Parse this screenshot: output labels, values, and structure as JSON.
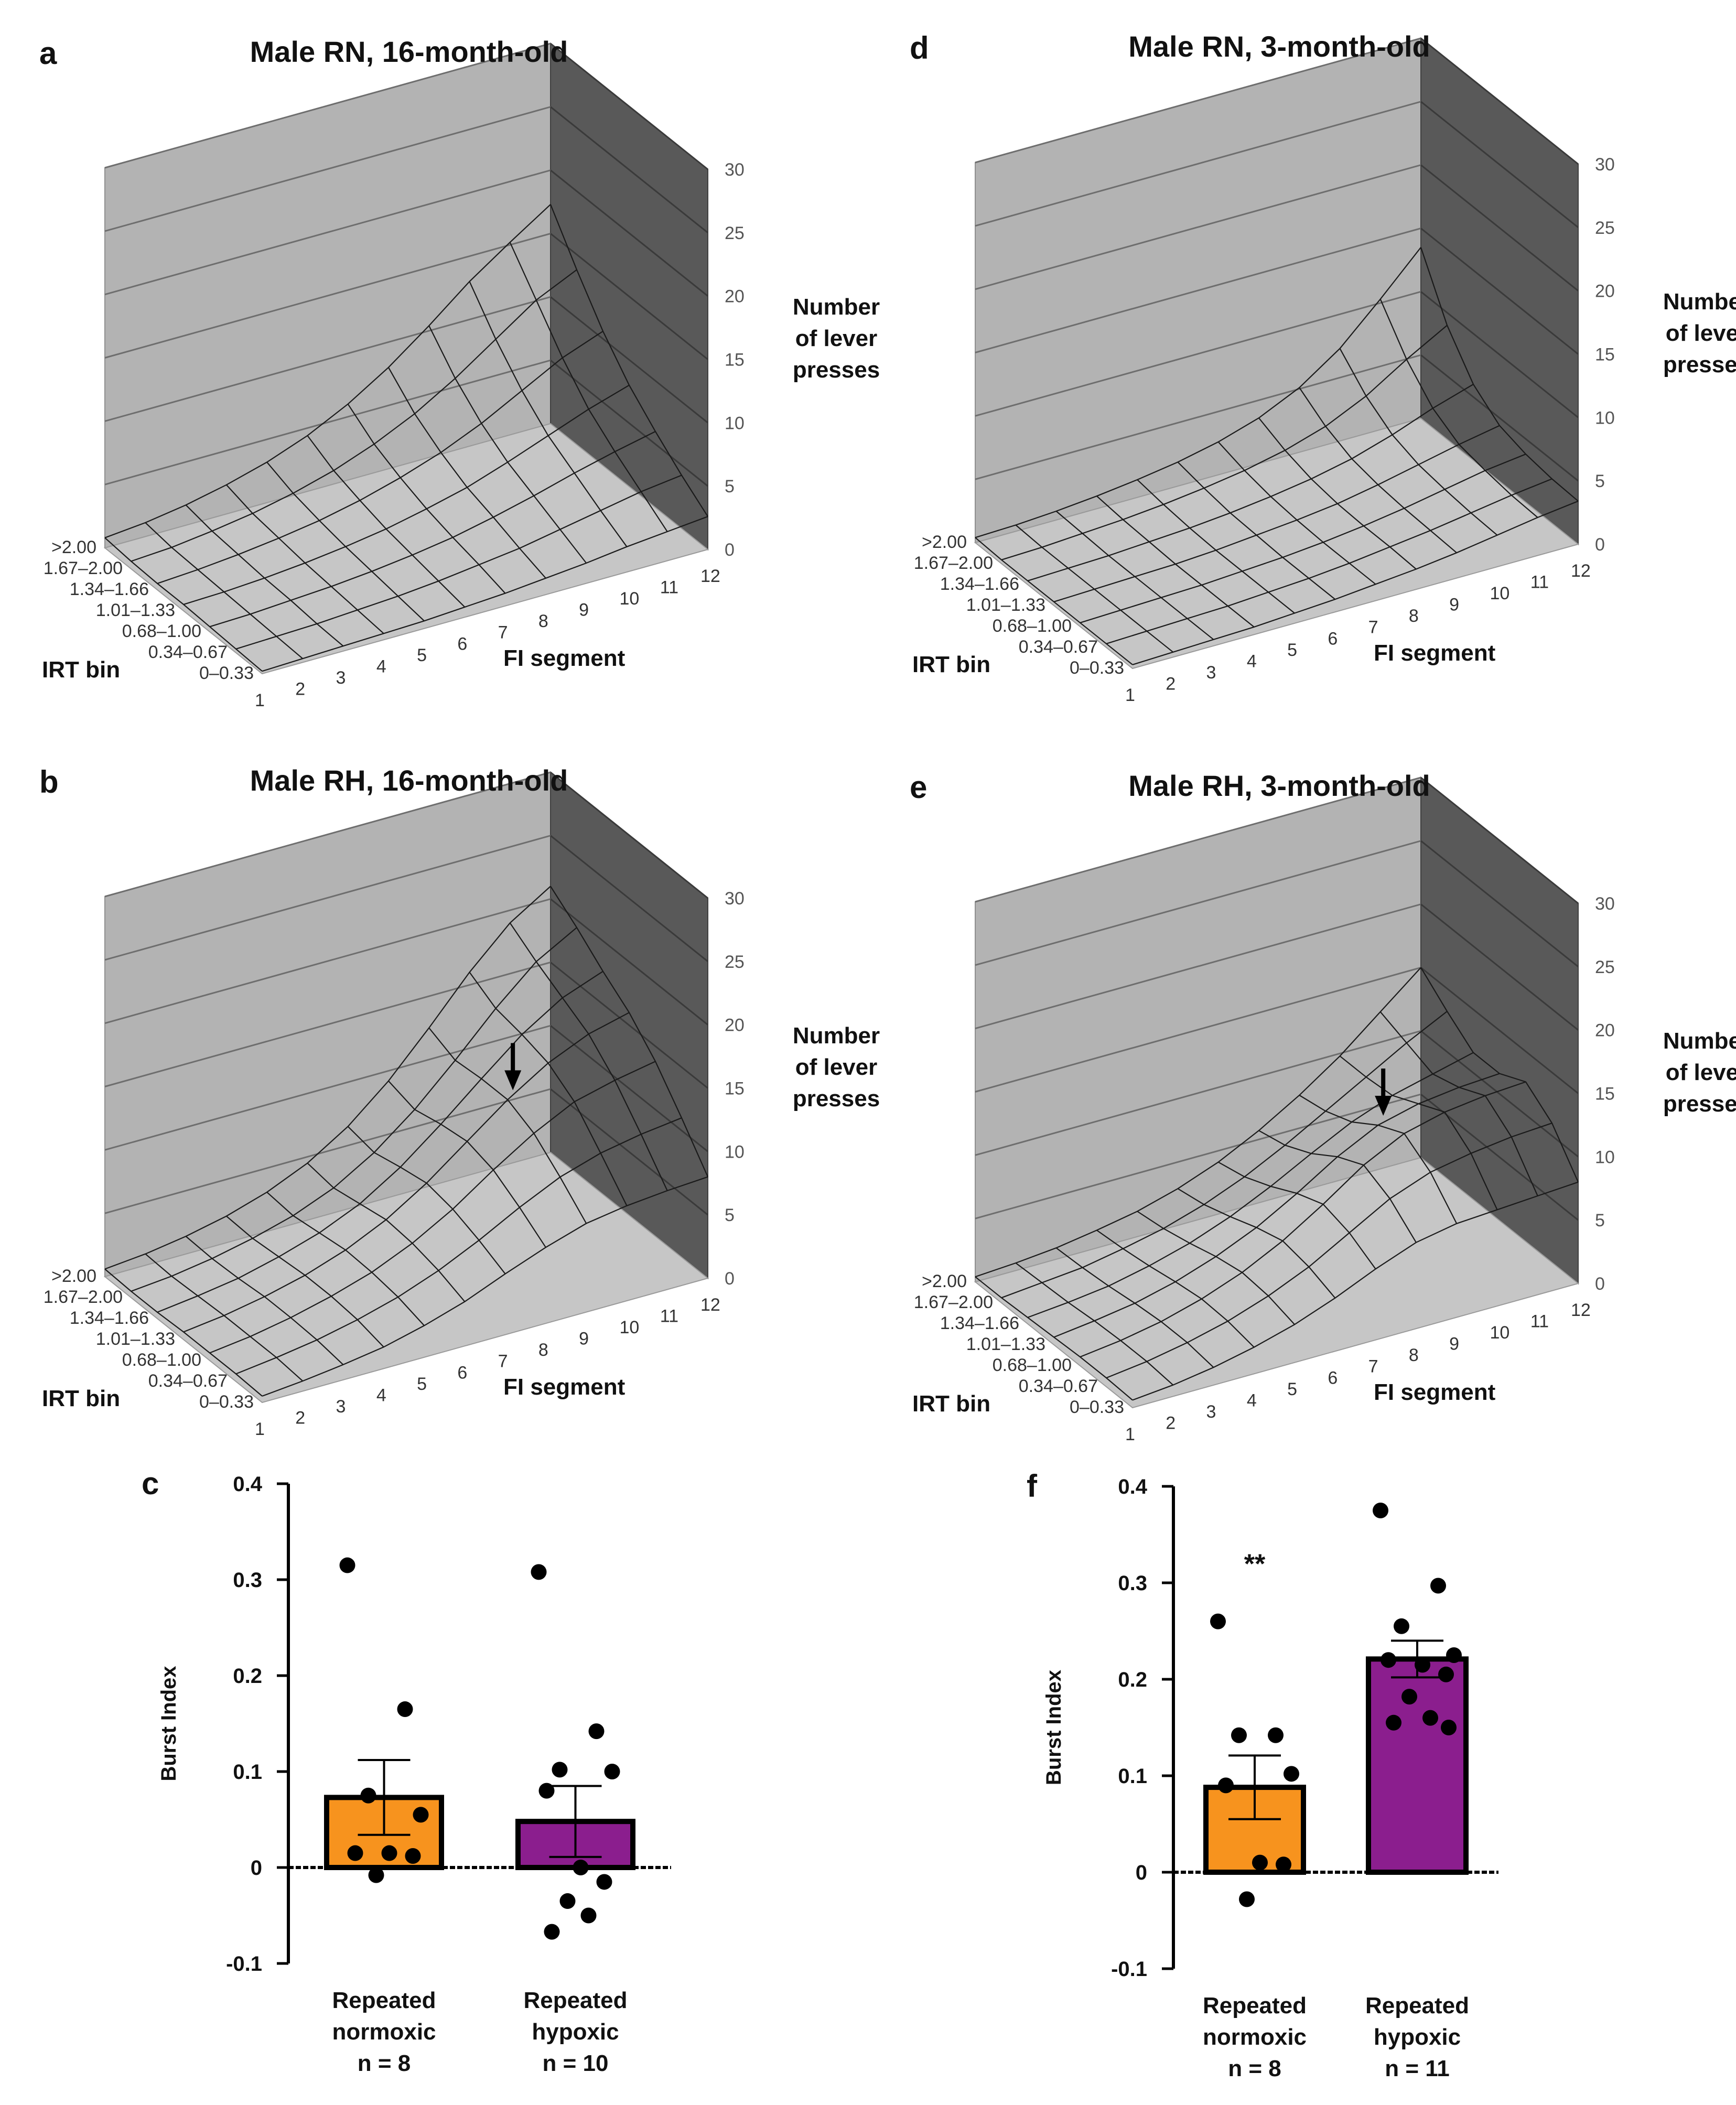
{
  "chart_data": [
    {
      "id": "a",
      "type": "surface3d",
      "panel_label": "a",
      "title": "Male RN, 16-month-old",
      "xlabel": "FI segment",
      "ylabel": "IRT bin",
      "zlabel": [
        "Number",
        "of lever",
        "presses"
      ],
      "x_ticks": [
        "1",
        "2",
        "3",
        "4",
        "5",
        "6",
        "7",
        "8",
        "9",
        "10",
        "11",
        "12"
      ],
      "y_ticks": [
        "0–0.33",
        "0.34–0.67",
        "0.68–1.00",
        "1.01–1.33",
        "1.34–1.66",
        "1.67–2.00",
        ">2.00"
      ],
      "z_ticks": [
        "0",
        "5",
        "10",
        "15",
        "20",
        "25",
        "30"
      ],
      "zlim": [
        0,
        30
      ],
      "arrow": false,
      "z": [
        [
          0.2,
          0.3,
          0.4,
          0.5,
          0.6,
          0.8,
          1.0,
          1.3,
          1.6,
          2.0,
          2.3,
          2.6
        ],
        [
          0.3,
          0.4,
          0.5,
          0.7,
          0.9,
          1.2,
          1.6,
          2.0,
          2.6,
          3.2,
          3.8,
          4.2
        ],
        [
          0.4,
          0.5,
          0.7,
          0.9,
          1.2,
          1.6,
          2.1,
          2.8,
          3.6,
          4.5,
          5.3,
          6.0
        ],
        [
          0.5,
          0.6,
          0.8,
          1.1,
          1.5,
          2.0,
          2.7,
          3.5,
          4.6,
          5.8,
          7.0,
          8.0
        ],
        [
          0.5,
          0.7,
          1.0,
          1.4,
          1.9,
          2.6,
          3.5,
          4.6,
          6.0,
          7.7,
          9.4,
          10.6
        ],
        [
          0.6,
          0.8,
          1.2,
          1.7,
          2.4,
          3.3,
          4.5,
          6.0,
          7.9,
          10.1,
          12.3,
          13.8
        ],
        [
          0.8,
          1.1,
          1.6,
          2.3,
          3.2,
          4.4,
          6.0,
          8.0,
          10.4,
          13.0,
          15.2,
          17.3
        ]
      ]
    },
    {
      "id": "d",
      "type": "surface3d",
      "panel_label": "d",
      "title": "Male RN, 3-month-old",
      "xlabel": "FI segment",
      "ylabel": "IRT bin",
      "zlabel": [
        "Number",
        "of lever",
        "presses"
      ],
      "x_ticks": [
        "1",
        "2",
        "3",
        "4",
        "5",
        "6",
        "7",
        "8",
        "9",
        "10",
        "11",
        "12"
      ],
      "y_ticks": [
        "0–0.33",
        "0.34–0.67",
        "0.68–1.00",
        "1.01–1.33",
        "1.34–1.66",
        "1.67–2.00",
        ">2.00"
      ],
      "z_ticks": [
        "0",
        "5",
        "10",
        "15",
        "20",
        "25",
        "30"
      ],
      "zlim": [
        0,
        30
      ],
      "arrow": false,
      "z": [
        [
          0.3,
          0.4,
          0.5,
          0.6,
          0.8,
          1.0,
          1.3,
          1.6,
          2.0,
          2.5,
          3.0,
          3.4
        ],
        [
          0.3,
          0.4,
          0.5,
          0.6,
          0.8,
          1.0,
          1.3,
          1.7,
          2.1,
          2.6,
          3.1,
          3.5
        ],
        [
          0.3,
          0.4,
          0.5,
          0.6,
          0.8,
          1.0,
          1.3,
          1.7,
          2.2,
          2.8,
          3.4,
          3.8
        ],
        [
          0.3,
          0.4,
          0.5,
          0.6,
          0.8,
          1.1,
          1.4,
          1.8,
          2.4,
          3.1,
          3.8,
          4.4
        ],
        [
          0.3,
          0.4,
          0.5,
          0.7,
          0.9,
          1.2,
          1.6,
          2.1,
          2.8,
          3.8,
          5.0,
          6.0
        ],
        [
          0.3,
          0.4,
          0.6,
          0.8,
          1.1,
          1.5,
          2.0,
          2.7,
          3.7,
          5.2,
          7.2,
          9.0
        ],
        [
          0.4,
          0.5,
          0.7,
          1.0,
          1.4,
          1.9,
          2.6,
          3.6,
          5.1,
          7.3,
          10.3,
          13.5
        ]
      ]
    },
    {
      "id": "b",
      "type": "surface3d",
      "panel_label": "b",
      "title": "Male RH, 16-month-old",
      "xlabel": "FI segment",
      "ylabel": "IRT bin",
      "zlabel": [
        "Number",
        "of lever",
        "presses"
      ],
      "x_ticks": [
        "1",
        "2",
        "3",
        "4",
        "5",
        "6",
        "7",
        "8",
        "9",
        "10",
        "11",
        "12"
      ],
      "y_ticks": [
        "0–0.33",
        "0.34–0.67",
        "0.68–1.00",
        "1.01–1.33",
        "1.34–1.66",
        "1.67–2.00",
        ">2.00"
      ],
      "z_ticks": [
        "0",
        "5",
        "10",
        "15",
        "20",
        "25",
        "30"
      ],
      "zlim": [
        0,
        30
      ],
      "arrow": true,
      "z": [
        [
          0.5,
          0.8,
          1.2,
          1.7,
          2.5,
          3.5,
          4.8,
          6.0,
          7.0,
          7.5,
          7.8,
          8.0
        ],
        [
          0.6,
          1.0,
          1.5,
          2.2,
          3.1,
          4.3,
          5.8,
          7.5,
          9.0,
          10.0,
          10.6,
          11.0
        ],
        [
          0.6,
          1.0,
          1.6,
          2.4,
          3.4,
          4.8,
          6.6,
          8.8,
          10.8,
          12.4,
          13.2,
          13.8
        ],
        [
          0.6,
          1.0,
          1.6,
          2.4,
          3.5,
          5.0,
          7.0,
          9.4,
          11.8,
          13.8,
          15.2,
          16.0
        ],
        [
          0.5,
          0.9,
          1.4,
          2.2,
          3.2,
          4.6,
          6.6,
          9.1,
          11.8,
          14.4,
          16.4,
          17.6
        ],
        [
          0.5,
          0.8,
          1.3,
          2.0,
          2.9,
          4.2,
          6.1,
          8.6,
          11.6,
          14.8,
          17.6,
          19.4
        ],
        [
          0.6,
          0.9,
          1.4,
          2.1,
          3.1,
          4.5,
          6.5,
          9.2,
          12.5,
          16.0,
          19.0,
          21.0
        ]
      ]
    },
    {
      "id": "e",
      "type": "surface3d",
      "panel_label": "e",
      "title": "Male RH, 3-month-old",
      "xlabel": "FI segment",
      "ylabel": "IRT bin",
      "zlabel": [
        "Number",
        "of lever",
        "presses"
      ],
      "x_ticks": [
        "1",
        "2",
        "3",
        "4",
        "5",
        "6",
        "7",
        "8",
        "9",
        "10",
        "11",
        "12"
      ],
      "y_ticks": [
        "0–0.33",
        "0.34–0.67",
        "0.68–1.00",
        "1.01–1.33",
        "1.34–1.66",
        "1.67–2.00",
        ">2.00"
      ],
      "z_ticks": [
        "0",
        "5",
        "10",
        "15",
        "20",
        "25",
        "30"
      ],
      "zlim": [
        0,
        30
      ],
      "arrow": true,
      "z": [
        [
          0.6,
          0.9,
          1.4,
          2.1,
          3.0,
          4.2,
          5.6,
          6.8,
          7.4,
          7.6,
          7.8,
          8.0
        ],
        [
          0.7,
          1.1,
          1.7,
          2.5,
          3.6,
          5.0,
          6.8,
          8.6,
          9.8,
          10.4,
          10.8,
          11.0
        ],
        [
          0.7,
          1.1,
          1.7,
          2.6,
          3.8,
          5.4,
          7.4,
          9.6,
          11.2,
          12.0,
          12.4,
          12.6
        ],
        [
          0.6,
          1.0,
          1.5,
          2.3,
          3.4,
          4.8,
          6.6,
          8.6,
          10.2,
          11.0,
          11.4,
          11.6
        ],
        [
          0.5,
          0.8,
          1.2,
          1.9,
          2.8,
          4.0,
          5.5,
          7.2,
          8.8,
          10.0,
          10.8,
          11.6
        ],
        [
          0.4,
          0.7,
          1.0,
          1.6,
          2.3,
          3.3,
          4.6,
          6.2,
          8.0,
          9.8,
          11.6,
          13.2
        ],
        [
          0.4,
          0.6,
          0.9,
          1.4,
          2.0,
          2.9,
          4.1,
          5.7,
          7.6,
          9.8,
          12.4,
          15.0
        ]
      ]
    },
    {
      "id": "c",
      "type": "bar",
      "panel_label": "c",
      "ylabel": "Burst Index",
      "ylim": [
        -0.1,
        0.4
      ],
      "y_ticks": [
        "-0.1",
        "0",
        "0.1",
        "0.2",
        "0.3",
        "0.4"
      ],
      "y_tick_values": [
        -0.1,
        0,
        0.1,
        0.2,
        0.3,
        0.4
      ],
      "significance": "",
      "groups": [
        {
          "label": [
            "Repeated",
            "normoxic",
            "n = 8"
          ],
          "color": "#F7931E",
          "mean": 0.073,
          "sem": 0.039,
          "points": [
            0.315,
            0.165,
            0.075,
            0.055,
            0.015,
            0.015,
            0.012,
            -0.008
          ]
        },
        {
          "label": [
            "Repeated",
            "hypoxic",
            "n = 10"
          ],
          "color": "#8B1E8E",
          "mean": 0.048,
          "sem": 0.037,
          "points": [
            0.308,
            0.142,
            0.102,
            0.1,
            0.08,
            0.0,
            -0.015,
            -0.035,
            -0.05,
            -0.067
          ]
        }
      ]
    },
    {
      "id": "f",
      "type": "bar",
      "panel_label": "f",
      "ylabel": "Burst Index",
      "ylim": [
        -0.1,
        0.4
      ],
      "y_ticks": [
        "-0.1",
        "0",
        "0.1",
        "0.2",
        "0.3",
        "0.4"
      ],
      "y_tick_values": [
        -0.1,
        0,
        0.1,
        0.2,
        0.3,
        0.4
      ],
      "significance": "**",
      "groups": [
        {
          "label": [
            "Repeated",
            "normoxic",
            "n = 8"
          ],
          "color": "#F7931E",
          "mean": 0.088,
          "sem": 0.033,
          "points": [
            0.26,
            0.142,
            0.142,
            0.102,
            0.09,
            0.01,
            0.008,
            -0.028
          ]
        },
        {
          "label": [
            "Repeated",
            "hypoxic",
            "n = 11"
          ],
          "color": "#8B1E8E",
          "mean": 0.221,
          "sem": 0.019,
          "points": [
            0.375,
            0.297,
            0.255,
            0.225,
            0.22,
            0.215,
            0.205,
            0.182,
            0.16,
            0.155,
            0.15
          ]
        }
      ]
    }
  ]
}
